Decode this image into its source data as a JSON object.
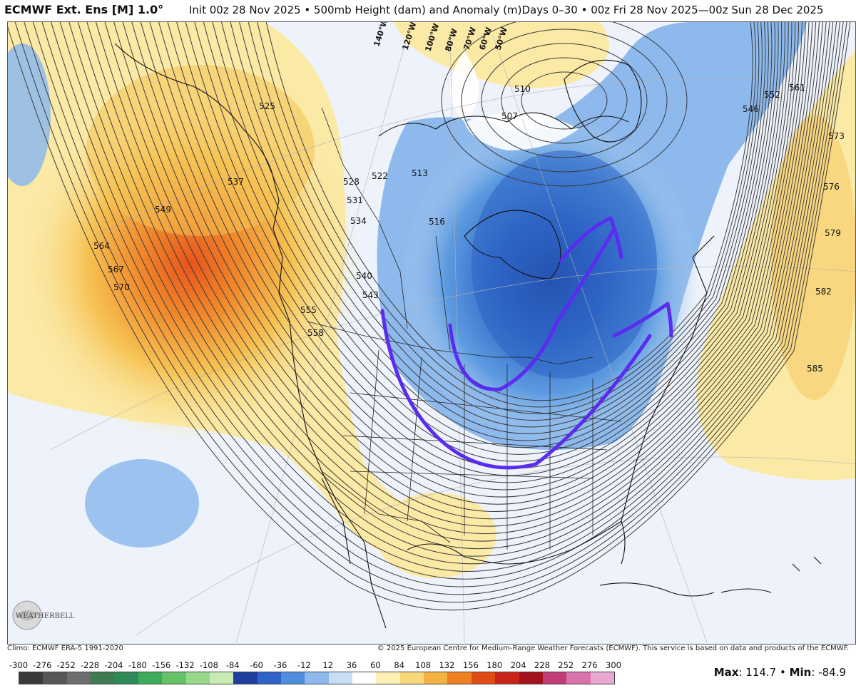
{
  "header": {
    "title_main": "ECMWF Ext. Ens [M] 1.0°",
    "title_rest": "Init 00z 28 Nov 2025 • 500mb Height (dam) and Anomaly (m)Days 0–30 • 00z Fri 28 Nov 2025—00z Sun 28 Dec 2025"
  },
  "map": {
    "contour_labels": [
      "525",
      "537",
      "549",
      "564",
      "567",
      "570",
      "528",
      "531",
      "534",
      "540",
      "543",
      "522",
      "513",
      "516",
      "507",
      "510",
      "546",
      "552",
      "561",
      "573",
      "576",
      "579",
      "582",
      "585",
      "555",
      "558"
    ],
    "longitude_labels": [
      "140°W",
      "120°W",
      "100°W",
      "80°W",
      "70°W",
      "60°W",
      "50°W"
    ],
    "colors": {
      "warm_light": "#fbe9a6",
      "warm_mid": "#f6c253",
      "warm_strong": "#f08a2c",
      "warm_core": "#e8551a",
      "cool_light": "#b9d3f0",
      "cool_mid": "#5d9be0",
      "cool_strong": "#2d64c5",
      "cool_core": "#1c3f9a",
      "annotation": "#5a2cf0"
    }
  },
  "footer": {
    "logo_text": "WEATHERBELL",
    "climo": "Climo: ECMWF ERA-5 1991-2020",
    "copyright": "© 2025 European Centre for Medium-Range Weather Forecasts (ECMWF). This service is based on data and products of the ECMWF.",
    "max_label": "Max",
    "max_value": ": 114.7 • ",
    "min_label": "Min",
    "min_value": ": -84.9"
  },
  "legend": {
    "ticks": [
      "-300",
      "-276",
      "-252",
      "-228",
      "-204",
      "-180",
      "-156",
      "-132",
      "-108",
      "-84",
      "-60",
      "-36",
      "-12",
      "12",
      "36",
      "60",
      "84",
      "108",
      "132",
      "156",
      "180",
      "204",
      "228",
      "252",
      "276",
      "300"
    ],
    "colors": [
      "#3a3a3a",
      "#575757",
      "#6d6d6d",
      "#3f7a52",
      "#2e8b57",
      "#3cab5a",
      "#66c266",
      "#97d88a",
      "#c7ebb3",
      "#1f3f9e",
      "#2f63c7",
      "#4f8ede",
      "#8db9ec",
      "#c6def6",
      "#ffffff",
      "#fdf1b5",
      "#f8d87a",
      "#f4b242",
      "#ee7f22",
      "#e04c16",
      "#c8241a",
      "#a4111c",
      "#c23c77",
      "#d874aa",
      "#e9a8cf"
    ]
  }
}
